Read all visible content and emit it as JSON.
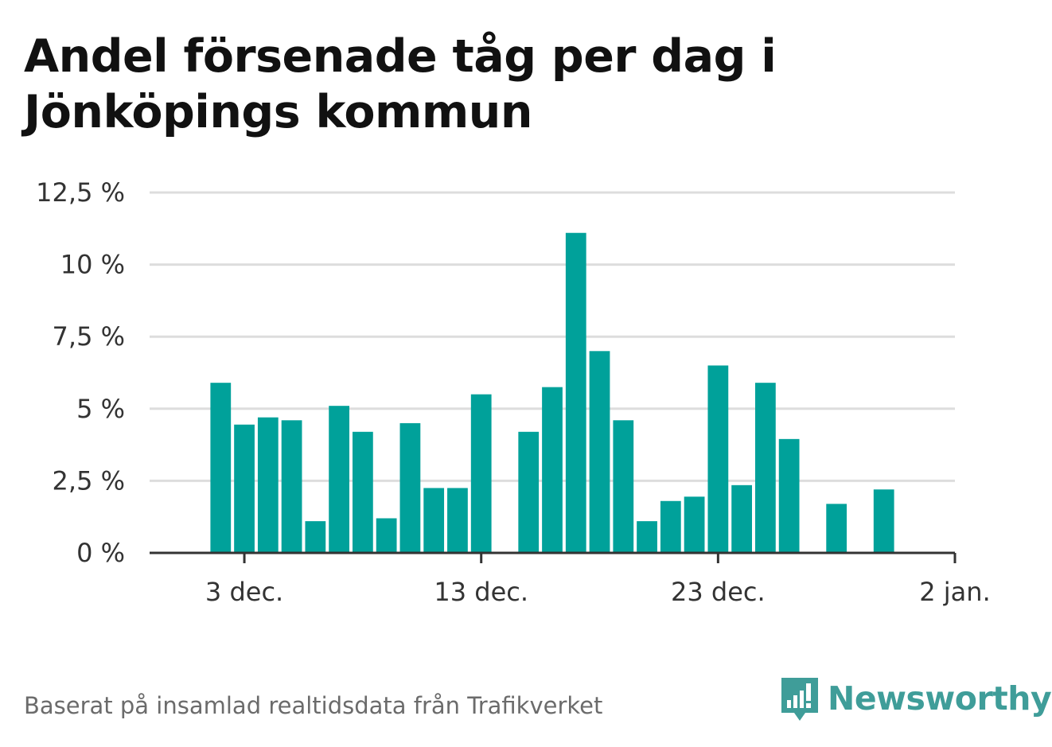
{
  "title_line1": "Andel försenade tåg per dag i",
  "title_line2": "Jönköpings kommun",
  "footer": "Baserat på insamlad realtidsdata från Trafikverket",
  "brand": {
    "name": "Newsworthy",
    "icon": "newsworthy-chart-bubble-icon",
    "color": "#3f9d99"
  },
  "colors": {
    "bar": "#00a19a",
    "grid": "#dddddd",
    "axis": "#333333"
  },
  "chart_data": {
    "type": "bar",
    "title": "Andel försenade tåg per dag i Jönköpings kommun",
    "xlabel": "",
    "ylabel": "",
    "y_unit": "%",
    "ylim": [
      0,
      12.5
    ],
    "grid": true,
    "legend": "none",
    "y_ticks": [
      {
        "value": 0,
        "label": "0 %"
      },
      {
        "value": 2.5,
        "label": "2,5 %"
      },
      {
        "value": 5,
        "label": "5 %"
      },
      {
        "value": 7.5,
        "label": "7,5 %"
      },
      {
        "value": 10,
        "label": "10 %"
      },
      {
        "value": 12.5,
        "label": "12,5 %"
      }
    ],
    "x_ticks": [
      {
        "date": "2019-12-03",
        "label": "3 dec."
      },
      {
        "date": "2019-12-13",
        "label": "13 dec."
      },
      {
        "date": "2019-12-23",
        "label": "23 dec."
      },
      {
        "date": "2020-01-02",
        "label": "2 jan."
      }
    ],
    "xlim": [
      "2019-11-29",
      "2020-01-02"
    ],
    "points": [
      {
        "date": "2019-12-02",
        "value": 5.9
      },
      {
        "date": "2019-12-03",
        "value": 4.45
      },
      {
        "date": "2019-12-04",
        "value": 4.7
      },
      {
        "date": "2019-12-05",
        "value": 4.6
      },
      {
        "date": "2019-12-06",
        "value": 1.1
      },
      {
        "date": "2019-12-07",
        "value": 5.1
      },
      {
        "date": "2019-12-08",
        "value": 4.2
      },
      {
        "date": "2019-12-09",
        "value": 1.2
      },
      {
        "date": "2019-12-10",
        "value": 4.5
      },
      {
        "date": "2019-12-11",
        "value": 2.25
      },
      {
        "date": "2019-12-12",
        "value": 2.25
      },
      {
        "date": "2019-12-13",
        "value": 5.5
      },
      {
        "date": "2019-12-15",
        "value": 4.2
      },
      {
        "date": "2019-12-16",
        "value": 5.75
      },
      {
        "date": "2019-12-17",
        "value": 11.1
      },
      {
        "date": "2019-12-18",
        "value": 7.0
      },
      {
        "date": "2019-12-19",
        "value": 4.6
      },
      {
        "date": "2019-12-20",
        "value": 1.1
      },
      {
        "date": "2019-12-21",
        "value": 1.8
      },
      {
        "date": "2019-12-22",
        "value": 1.95
      },
      {
        "date": "2019-12-23",
        "value": 6.5
      },
      {
        "date": "2019-12-24",
        "value": 2.35
      },
      {
        "date": "2019-12-25",
        "value": 5.9
      },
      {
        "date": "2019-12-26",
        "value": 3.95
      },
      {
        "date": "2019-12-28",
        "value": 1.7
      },
      {
        "date": "2019-12-30",
        "value": 2.2
      }
    ]
  }
}
